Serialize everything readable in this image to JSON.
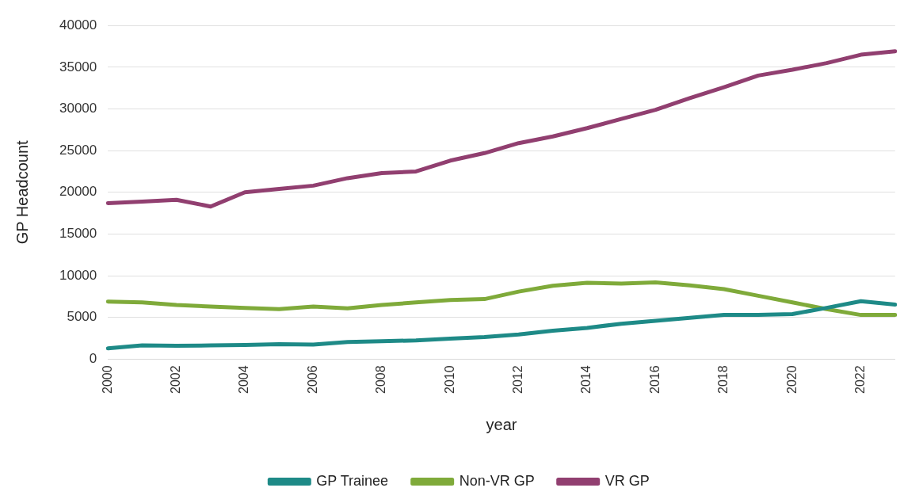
{
  "chart_data": {
    "type": "line",
    "xlabel": "year",
    "ylabel": "GP Headcount",
    "categories": [
      "2000",
      null,
      "2002",
      null,
      "2004",
      null,
      "2006",
      null,
      "2008",
      null,
      "2010",
      null,
      "2012",
      null,
      "2014",
      null,
      "2016",
      null,
      "2018",
      null,
      "2020",
      null,
      "2022",
      null
    ],
    "series": [
      {
        "name": "GP Trainee",
        "color": "#1e8a87",
        "values": [
          1300,
          1650,
          1600,
          1650,
          1700,
          1800,
          1750,
          2050,
          2150,
          2250,
          2450,
          2650,
          2950,
          3400,
          3750,
          4250,
          4600,
          4950,
          5300,
          5300,
          5400,
          6150,
          6950,
          6550
        ]
      },
      {
        "name": "Non-VR GP",
        "color": "#7faa3a",
        "values": [
          6900,
          6800,
          6500,
          6300,
          6150,
          6000,
          6300,
          6100,
          6500,
          6800,
          7100,
          7200,
          8100,
          8800,
          9150,
          9050,
          9200,
          8850,
          8400,
          7600,
          6800,
          6000,
          5300,
          5300
        ]
      },
      {
        "name": "VR GP",
        "color": "#913f70",
        "values": [
          18700,
          18900,
          19100,
          18300,
          20000,
          20400,
          20800,
          21700,
          22300,
          22500,
          23800,
          24700,
          25900,
          26700,
          27700,
          28800,
          29900,
          31300,
          32600,
          34000,
          34700,
          35500,
          36500,
          36900
        ]
      }
    ],
    "ylim": [
      0,
      40000
    ],
    "yticks": [
      0,
      5000,
      10000,
      15000,
      20000,
      25000,
      30000,
      35000,
      40000
    ],
    "grid": "y",
    "legend": "bottom",
    "marker": "none",
    "line_style": "solid"
  }
}
